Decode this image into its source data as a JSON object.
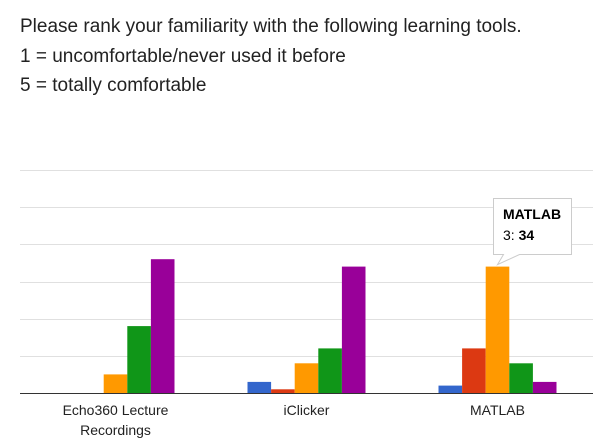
{
  "question": {
    "lines": [
      "Please rank your familiarity with the following learning tools.",
      "1 = uncomfortable/never used it before",
      "5 = totally comfortable"
    ]
  },
  "chart_data": {
    "type": "bar",
    "categories": [
      [
        "Echo360 Lecture",
        "Recordings"
      ],
      [
        "iClicker"
      ],
      [
        "MATLAB"
      ]
    ],
    "series": [
      {
        "values": [
          0,
          3,
          2
        ],
        "color": "#3366cc"
      },
      {
        "values": [
          0,
          1,
          12
        ],
        "color": "#dc3912"
      },
      {
        "values": [
          5,
          8,
          34
        ],
        "color": "#ff9900"
      },
      {
        "values": [
          18,
          12,
          8
        ],
        "color": "#109618"
      },
      {
        "values": [
          36,
          34,
          3
        ],
        "color": "#990099"
      }
    ],
    "ylim": [
      0,
      60
    ],
    "gridlines": [
      10,
      20,
      30,
      40,
      50,
      60
    ],
    "grid": true,
    "tooltip": {
      "category": "MATLAB",
      "series_label": "3",
      "value": "34",
      "series_index": 2,
      "category_index": 2
    }
  }
}
